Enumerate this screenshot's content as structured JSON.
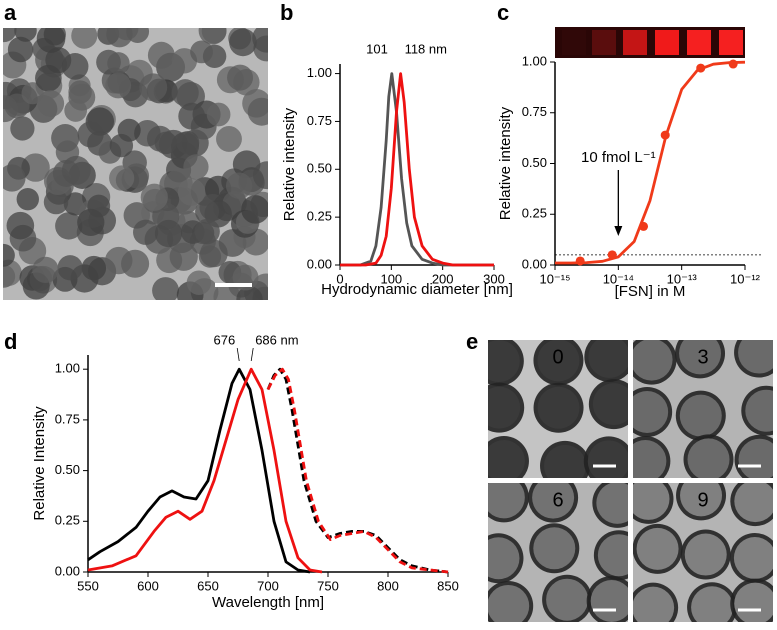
{
  "chart_data": [
    {
      "type": "line",
      "panel_label": "b",
      "xlabel": "Hydrodynamic diameter [nm]",
      "ylabel": "Relative intensity",
      "xlim": [
        0,
        300
      ],
      "xticks": [
        0,
        100,
        200,
        300
      ],
      "ylim": [
        0,
        1.05
      ],
      "yticks": [
        {
          "value": 0,
          "label": "0.00"
        },
        {
          "value": 0.25,
          "label": "0.25"
        },
        {
          "value": 0.5,
          "label": "0.50"
        },
        {
          "value": 0.75,
          "label": "0.75"
        },
        {
          "value": 1,
          "label": "1.00"
        }
      ],
      "annotations": [
        {
          "text": "101",
          "x": 101
        },
        {
          "text": "118 nm",
          "x": 118
        }
      ],
      "series": [
        {
          "color": "#555555",
          "style": "solid",
          "x": [
            0,
            40,
            60,
            70,
            80,
            90,
            95,
            101,
            110,
            120,
            130,
            140,
            160,
            180,
            200,
            220,
            300
          ],
          "values": [
            0,
            0,
            0.02,
            0.1,
            0.3,
            0.65,
            0.88,
            1.0,
            0.8,
            0.45,
            0.22,
            0.1,
            0.03,
            0.01,
            0,
            0,
            0
          ]
        },
        {
          "color": "#ee1111",
          "style": "solid",
          "x": [
            0,
            50,
            70,
            80,
            90,
            100,
            110,
            118,
            125,
            135,
            145,
            160,
            180,
            200,
            220,
            300
          ],
          "values": [
            0,
            0,
            0.01,
            0.05,
            0.15,
            0.4,
            0.8,
            1.0,
            0.85,
            0.5,
            0.25,
            0.1,
            0.03,
            0.01,
            0,
            0
          ]
        }
      ]
    },
    {
      "type": "scatter",
      "panel_label": "c",
      "xlabel": "[FSN] in M",
      "ylabel": "Relative intensity",
      "xscale": "log",
      "xlim": [
        1e-15,
        1e-12
      ],
      "xticks": [
        {
          "value": 1e-15,
          "label": "10⁻¹⁵"
        },
        {
          "value": 1e-14,
          "label": "10⁻¹⁴"
        },
        {
          "value": 1e-13,
          "label": "10⁻¹³"
        },
        {
          "value": 1e-12,
          "label": "10⁻¹²"
        }
      ],
      "ylim": [
        0,
        1.0
      ],
      "yticks": [
        {
          "value": 0,
          "label": "0.00"
        },
        {
          "value": 0.25,
          "label": "0.25"
        },
        {
          "value": 0.5,
          "label": "0.50"
        },
        {
          "value": 0.75,
          "label": "0.75"
        },
        {
          "value": 1,
          "label": "1.00"
        }
      ],
      "hline": 0.05,
      "arrow": {
        "text": "10 fmol L⁻¹",
        "x": 1e-14
      },
      "series": [
        {
          "color": "#f03a1a",
          "style": "markers",
          "x": [
            2.5e-15,
            8e-15,
            2.5e-14,
            5.5e-14,
            2e-13,
            6.5e-13
          ],
          "values": [
            0.02,
            0.05,
            0.19,
            0.64,
            0.97,
            0.99
          ]
        },
        {
          "color": "#f03a1a",
          "style": "solid",
          "x": [
            1e-15,
            1.778e-15,
            3.162e-15,
            5.623e-15,
            1e-14,
            1.778e-14,
            3.162e-14,
            5.623e-14,
            1e-13,
            1.778e-13,
            3.162e-13,
            5.623e-13,
            1e-12
          ],
          "values": [
            0.01,
            0.01,
            0.012,
            0.018,
            0.04,
            0.116,
            0.317,
            0.634,
            0.865,
            0.96,
            0.989,
            0.997,
            0.999
          ]
        }
      ]
    },
    {
      "type": "line",
      "panel_label": "d",
      "xlabel": "Wavelength [nm]",
      "ylabel": "Relative Intensity",
      "xlim": [
        550,
        850
      ],
      "xticks": [
        550,
        600,
        650,
        700,
        750,
        800,
        850
      ],
      "ylim": [
        0,
        1.07
      ],
      "yticks": [
        {
          "value": 0,
          "label": "0.00"
        },
        {
          "value": 0.25,
          "label": "0.25"
        },
        {
          "value": 0.5,
          "label": "0.50"
        },
        {
          "value": 0.75,
          "label": "0.75"
        },
        {
          "value": 1,
          "label": "1.00"
        }
      ],
      "annotations": [
        {
          "text": "676",
          "x": 676
        },
        {
          "text": "686 nm",
          "x": 686
        }
      ],
      "series": [
        {
          "color": "#000000",
          "style": "solid",
          "x": [
            550,
            560,
            575,
            590,
            600,
            610,
            620,
            630,
            640,
            650,
            660,
            670,
            676,
            685,
            695,
            705,
            715,
            725,
            735
          ],
          "values": [
            0.06,
            0.1,
            0.15,
            0.22,
            0.3,
            0.37,
            0.4,
            0.37,
            0.36,
            0.45,
            0.7,
            0.93,
            1.0,
            0.9,
            0.6,
            0.25,
            0.05,
            0.01,
            0
          ]
        },
        {
          "color": "#ee1111",
          "style": "solid",
          "x": [
            550,
            570,
            590,
            605,
            615,
            625,
            635,
            645,
            655,
            665,
            675,
            686,
            695,
            705,
            715,
            725,
            735,
            745
          ],
          "values": [
            0.01,
            0.03,
            0.08,
            0.2,
            0.27,
            0.3,
            0.26,
            0.3,
            0.45,
            0.65,
            0.85,
            1.0,
            0.9,
            0.6,
            0.25,
            0.07,
            0.01,
            0
          ]
        },
        {
          "color": "#000000",
          "style": "dashed",
          "x": [
            700,
            705,
            710,
            715,
            720,
            730,
            740,
            750,
            760,
            770,
            780,
            790,
            800,
            810,
            820,
            835,
            850
          ],
          "values": [
            0.9,
            0.97,
            1.0,
            0.95,
            0.8,
            0.45,
            0.25,
            0.17,
            0.19,
            0.2,
            0.2,
            0.18,
            0.12,
            0.06,
            0.03,
            0.01,
            0
          ]
        },
        {
          "color": "#ee1111",
          "style": "dashed",
          "x": [
            700,
            706,
            712,
            717,
            722,
            732,
            742,
            752,
            760,
            770,
            780,
            790,
            800,
            810,
            820,
            835,
            850
          ],
          "values": [
            0.9,
            0.97,
            1.0,
            0.95,
            0.8,
            0.45,
            0.25,
            0.16,
            0.18,
            0.19,
            0.2,
            0.17,
            0.11,
            0.05,
            0.02,
            0.01,
            0
          ]
        }
      ]
    }
  ],
  "images": [
    {
      "panel_label": "a"
    },
    {
      "panel_label": "e",
      "frames": [
        "0",
        "3",
        "6",
        "9"
      ]
    }
  ]
}
